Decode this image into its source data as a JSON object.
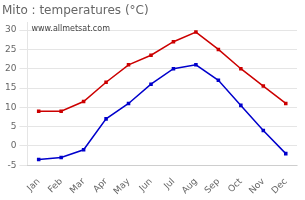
{
  "chart_data": {
    "type": "line",
    "title": "Mito : temperatures (°C)",
    "categories": [
      "Jan",
      "Feb",
      "Mar",
      "Apr",
      "May",
      "Jun",
      "Jul",
      "Aug",
      "Sep",
      "Oct",
      "Nov",
      "Dec"
    ],
    "series": [
      {
        "color": "#cc0000",
        "marker": "square",
        "line_style": "solid",
        "values": [
          9,
          9,
          11.5,
          16.5,
          21,
          23.5,
          27,
          29.5,
          25,
          20,
          15.5,
          11
        ]
      },
      {
        "color": "#0000cc",
        "marker": "square",
        "line_style": "solid",
        "values": [
          -3.5,
          -3,
          -1,
          7,
          11,
          16,
          20,
          21,
          17,
          10.5,
          4,
          -2
        ]
      }
    ],
    "ylim": [
      -5,
      32
    ],
    "yticks": [
      -5,
      0,
      5,
      10,
      15,
      20,
      25,
      30
    ],
    "grid": "y",
    "annotations": [
      "www.allmetsat.com"
    ]
  }
}
